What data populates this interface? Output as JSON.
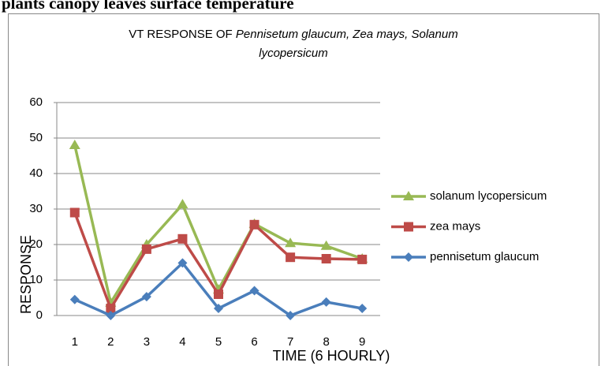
{
  "caption": "plants canopy leaves surface temperature",
  "chart_data": {
    "type": "line",
    "title": {
      "plain": "VT RESPONSE OF ",
      "italic": [
        "Pennisetum glaucum, Zea mays, Solanum",
        "lycopersicum"
      ]
    },
    "x_label": "TIME (6 HOURLY)",
    "y_label": "RESPONSE",
    "categories": [
      "1",
      "2",
      "3",
      "4",
      "5",
      "6",
      "7",
      "8",
      "9"
    ],
    "series": [
      {
        "name": "solanum lycopersicum",
        "color": "#98b954",
        "marker": "triangle",
        "values": [
          48,
          3.6,
          20,
          31.3,
          7.3,
          25.8,
          20.4,
          19.6,
          16
        ]
      },
      {
        "name": "zea mays",
        "color": "#be4b48",
        "marker": "square",
        "values": [
          29,
          2,
          18.7,
          21.6,
          6,
          25.6,
          16.4,
          16,
          15.8
        ]
      },
      {
        "name": "pennisetum glaucum",
        "color": "#4a7ebb",
        "marker": "diamond",
        "values": [
          4.5,
          0,
          5.3,
          14.8,
          2,
          7,
          0,
          3.8,
          2
        ]
      }
    ],
    "ylim": [
      0,
      60
    ],
    "yticks": [
      0,
      10,
      20,
      30,
      40,
      50,
      60
    ],
    "grid": true,
    "legend": "right"
  }
}
